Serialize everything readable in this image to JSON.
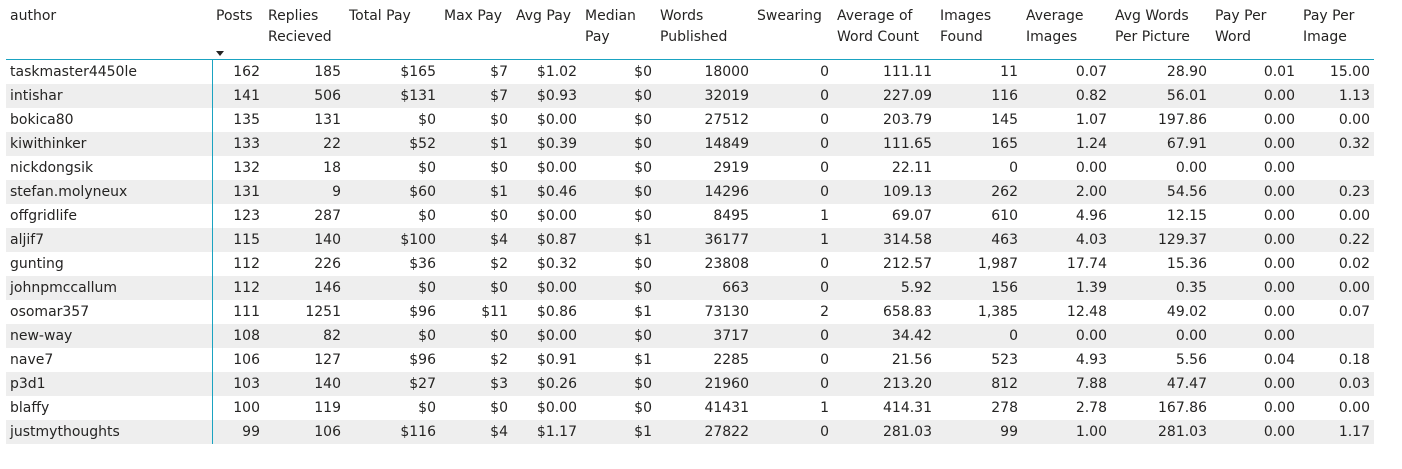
{
  "table": {
    "columns": [
      "author",
      "Posts",
      "Replies Recieved",
      "Total Pay",
      "Max Pay",
      "Avg Pay",
      "Median Pay",
      "Words Published",
      "Swearing",
      "Average of Word Count",
      "Images Found",
      "Average Images",
      "Avg Words Per Picture",
      "Pay Per Word",
      "Pay Per Image"
    ],
    "sorted_column": "Posts",
    "sort_direction": "descending",
    "sort_icon": "sort-descending-icon",
    "accent_color": "#1aa3c1",
    "stripe_color": "#eeeeee",
    "rows": [
      [
        "taskmaster4450le",
        "162",
        "185",
        "$165",
        "$7",
        "$1.02",
        "$0",
        "18000",
        "0",
        "111.11",
        "11",
        "0.07",
        "28.90",
        "0.01",
        "15.00"
      ],
      [
        "intishar",
        "141",
        "506",
        "$131",
        "$7",
        "$0.93",
        "$0",
        "32019",
        "0",
        "227.09",
        "116",
        "0.82",
        "56.01",
        "0.00",
        "1.13"
      ],
      [
        "bokica80",
        "135",
        "131",
        "$0",
        "$0",
        "$0.00",
        "$0",
        "27512",
        "0",
        "203.79",
        "145",
        "1.07",
        "197.86",
        "0.00",
        "0.00"
      ],
      [
        "kiwithinker",
        "133",
        "22",
        "$52",
        "$1",
        "$0.39",
        "$0",
        "14849",
        "0",
        "111.65",
        "165",
        "1.24",
        "67.91",
        "0.00",
        "0.32"
      ],
      [
        "nickdongsik",
        "132",
        "18",
        "$0",
        "$0",
        "$0.00",
        "$0",
        "2919",
        "0",
        "22.11",
        "0",
        "0.00",
        "0.00",
        "0.00",
        ""
      ],
      [
        "stefan.molyneux",
        "131",
        "9",
        "$60",
        "$1",
        "$0.46",
        "$0",
        "14296",
        "0",
        "109.13",
        "262",
        "2.00",
        "54.56",
        "0.00",
        "0.23"
      ],
      [
        "offgridlife",
        "123",
        "287",
        "$0",
        "$0",
        "$0.00",
        "$0",
        "8495",
        "1",
        "69.07",
        "610",
        "4.96",
        "12.15",
        "0.00",
        "0.00"
      ],
      [
        "aljif7",
        "115",
        "140",
        "$100",
        "$4",
        "$0.87",
        "$1",
        "36177",
        "1",
        "314.58",
        "463",
        "4.03",
        "129.37",
        "0.00",
        "0.22"
      ],
      [
        "gunting",
        "112",
        "226",
        "$36",
        "$2",
        "$0.32",
        "$0",
        "23808",
        "0",
        "212.57",
        "1,987",
        "17.74",
        "15.36",
        "0.00",
        "0.02"
      ],
      [
        "johnpmccallum",
        "112",
        "146",
        "$0",
        "$0",
        "$0.00",
        "$0",
        "663",
        "0",
        "5.92",
        "156",
        "1.39",
        "0.35",
        "0.00",
        "0.00"
      ],
      [
        "osomar357",
        "111",
        "1251",
        "$96",
        "$11",
        "$0.86",
        "$1",
        "73130",
        "2",
        "658.83",
        "1,385",
        "12.48",
        "49.02",
        "0.00",
        "0.07"
      ],
      [
        "new-way",
        "108",
        "82",
        "$0",
        "$0",
        "$0.00",
        "$0",
        "3717",
        "0",
        "34.42",
        "0",
        "0.00",
        "0.00",
        "0.00",
        ""
      ],
      [
        "nave7",
        "106",
        "127",
        "$96",
        "$2",
        "$0.91",
        "$1",
        "2285",
        "0",
        "21.56",
        "523",
        "4.93",
        "5.56",
        "0.04",
        "0.18"
      ],
      [
        "p3d1",
        "103",
        "140",
        "$27",
        "$3",
        "$0.26",
        "$0",
        "21960",
        "0",
        "213.20",
        "812",
        "7.88",
        "47.47",
        "0.00",
        "0.03"
      ],
      [
        "blaffy",
        "100",
        "119",
        "$0",
        "$0",
        "$0.00",
        "$0",
        "41431",
        "1",
        "414.31",
        "278",
        "2.78",
        "167.86",
        "0.00",
        "0.00"
      ],
      [
        "justmythoughts",
        "99",
        "106",
        "$116",
        "$4",
        "$1.17",
        "$1",
        "27822",
        "0",
        "281.03",
        "99",
        "1.00",
        "281.03",
        "0.00",
        "1.17"
      ]
    ]
  }
}
